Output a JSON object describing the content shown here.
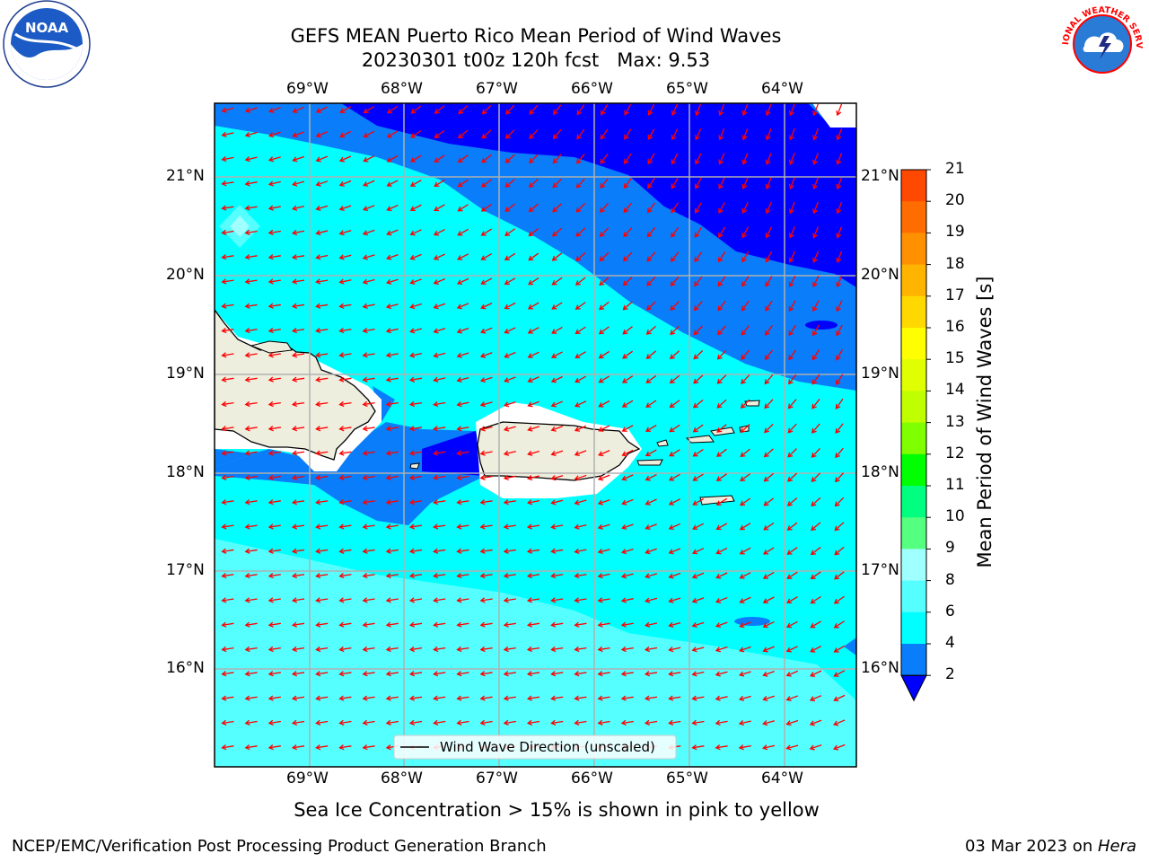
{
  "title": {
    "line1": "GEFS MEAN Puerto Rico Mean Period of Wind Waves",
    "line2": "20230301 t00z 120h fcst   Max: 9.53"
  },
  "map": {
    "lon_labels": [
      "69°W",
      "68°W",
      "67°W",
      "66°W",
      "65°W",
      "64°W"
    ],
    "lat_labels": [
      "21°N",
      "20°N",
      "19°N",
      "18°N",
      "17°N",
      "16°N"
    ],
    "legend_label": "Wind Wave Direction (unscaled)",
    "colors": {
      "land": "#eeeedf",
      "ocean_2_4": "#0a7dfa",
      "ocean_4_6": "#00ffff",
      "ocean_6_8": "#55ffff",
      "deep": "#0000ff",
      "arrow": "#ff0000"
    }
  },
  "colorbar": {
    "title": "Mean Period of Wind Waves [s]",
    "ticks": [
      "21",
      "20",
      "19",
      "18",
      "17",
      "16",
      "15",
      "14",
      "13",
      "12",
      "11",
      "10",
      "9",
      "8",
      "6",
      "4",
      "2"
    ],
    "colors": [
      "#ff0000",
      "#ff2400",
      "#ff4800",
      "#ff6c00",
      "#ff9000",
      "#ffb400",
      "#ffd800",
      "#ffff00",
      "#e0ff00",
      "#c0ff00",
      "#80ff00",
      "#00ff00",
      "#00ff80",
      "#55ff7f",
      "#a0ffff",
      "#55ffff",
      "#00ffff",
      "#0a7dfa",
      "#0000ff"
    ]
  },
  "caption": "Sea Ice Concentration > 15% is shown in pink to yellow",
  "footer": {
    "left": "NCEP/EMC/Verification Post Processing Product Generation Branch",
    "right_prefix": "03 Mar 2023 on ",
    "right_host": "Hera"
  },
  "logos": {
    "noaa_text": "NOAA",
    "nws_text": "NATIONAL WEATHER SERVICE"
  }
}
